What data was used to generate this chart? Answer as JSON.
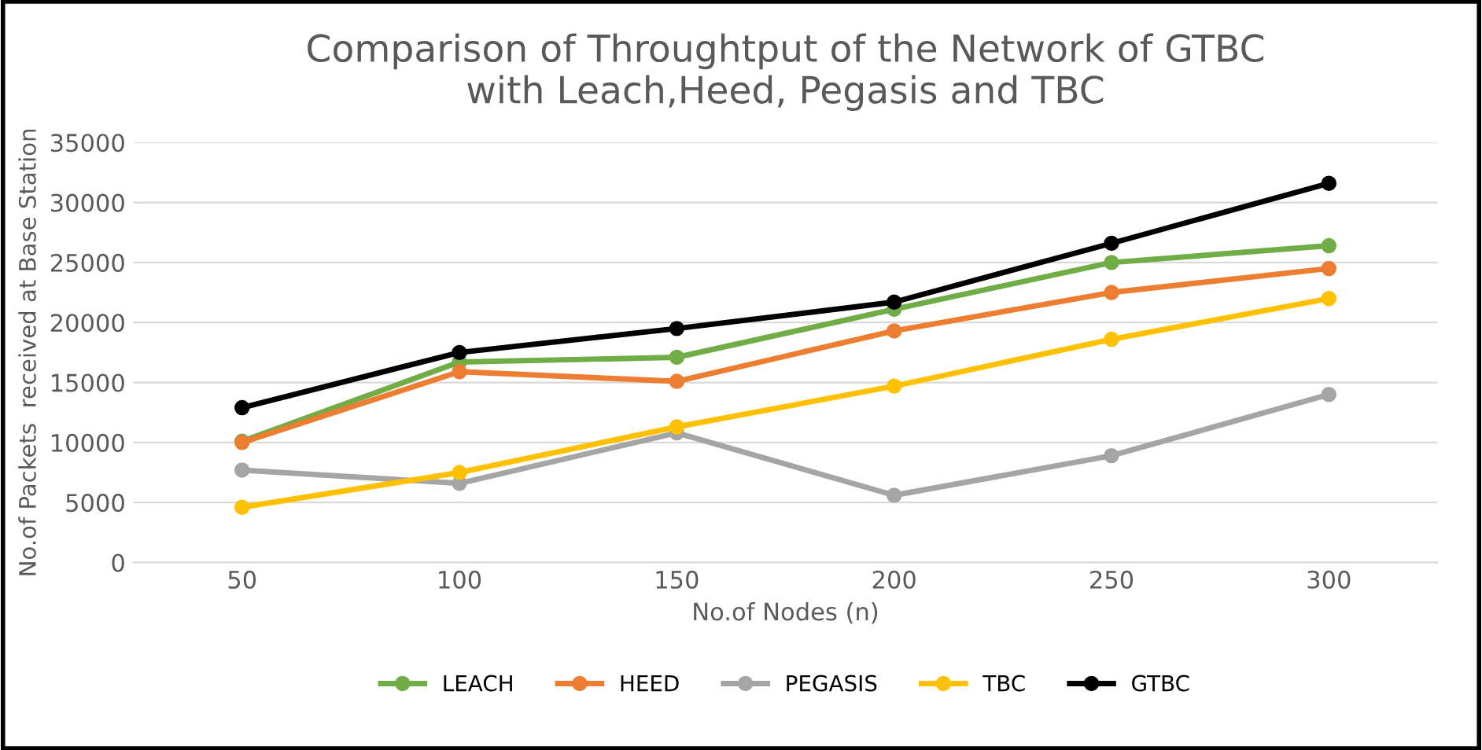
{
  "chart_data": {
    "type": "line",
    "title": "Comparison of Throughtput of the Network of GTBC\nwith Leach,Heed, Pegasis and TBC",
    "xlabel": "No.of Nodes (n)",
    "ylabel": "No.of Packets  received at Base Station",
    "categories": [
      "50",
      "100",
      "150",
      "200",
      "250",
      "300"
    ],
    "series": [
      {
        "name": "LEACH",
        "color": "#70ad47",
        "values": [
          10100,
          16700,
          17100,
          21100,
          25000,
          26400
        ]
      },
      {
        "name": "HEED",
        "color": "#ed7d31",
        "values": [
          10000,
          15900,
          15100,
          19300,
          22500,
          24500
        ]
      },
      {
        "name": "PEGASIS",
        "color": "#a5a5a5",
        "values": [
          7700,
          6600,
          10800,
          5600,
          8900,
          14000
        ]
      },
      {
        "name": "TBC",
        "color": "#ffc000",
        "values": [
          4600,
          7500,
          11300,
          14700,
          18600,
          22000
        ]
      },
      {
        "name": "GTBC",
        "color": "#000000",
        "values": [
          12900,
          17500,
          19500,
          21700,
          26600,
          31600
        ]
      }
    ],
    "ylim": [
      0,
      35000
    ],
    "yticks": [
      0,
      5000,
      10000,
      15000,
      20000,
      25000,
      30000,
      35000
    ],
    "grid": "y",
    "legend": "bottom",
    "marker": "circle",
    "line_style": "solid"
  }
}
